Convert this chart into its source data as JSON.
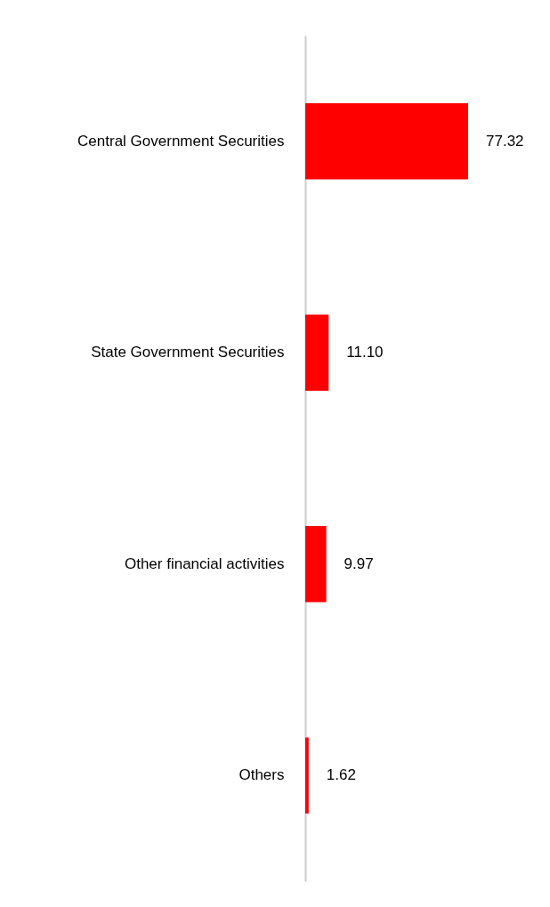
{
  "chart_data": {
    "type": "bar",
    "orientation": "horizontal",
    "categories": [
      "Central Government Securities",
      "State Government Securities",
      "Other financial activities",
      "Others"
    ],
    "values": [
      77.32,
      11.1,
      9.97,
      1.62
    ],
    "value_labels": [
      "77.32",
      "11.10",
      "9.97",
      "1.62"
    ],
    "color": "#ff0000"
  }
}
